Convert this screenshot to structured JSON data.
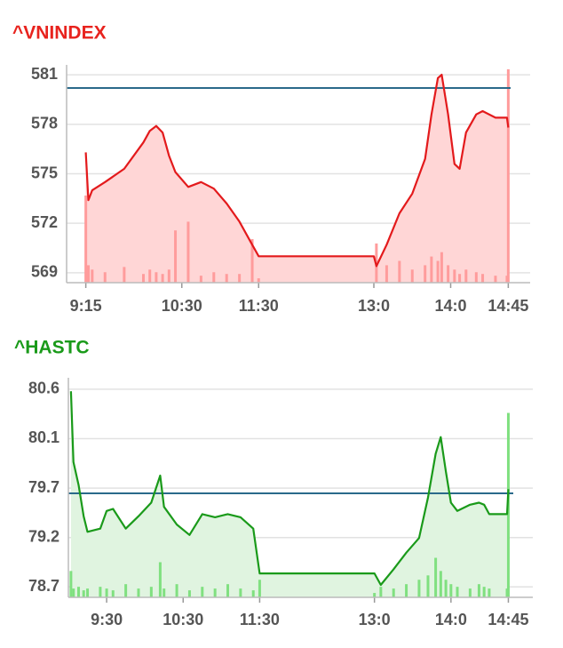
{
  "chart_data": [
    {
      "type": "line",
      "title": "^VNINDEX",
      "title_color": "#e8231e",
      "x": [
        "9:15",
        "9:17",
        "9:20",
        "9:30",
        "9:45",
        "10:00",
        "10:05",
        "10:10",
        "10:15",
        "10:20",
        "10:25",
        "10:35",
        "10:45",
        "10:55",
        "11:05",
        "11:15",
        "11:25",
        "11:30",
        "13:00",
        "13:02",
        "13:10",
        "13:20",
        "13:30",
        "13:40",
        "13:45",
        "13:50",
        "13:53",
        "13:58",
        "14:03",
        "14:07",
        "14:12",
        "14:20",
        "14:25",
        "14:35",
        "14:44",
        "14:45"
      ],
      "values": [
        576.3,
        573.4,
        574.0,
        574.5,
        575.3,
        576.9,
        577.6,
        577.9,
        577.5,
        576.1,
        575.1,
        574.2,
        574.5,
        574.1,
        573.2,
        572.1,
        570.7,
        570.0,
        570.0,
        569.4,
        570.7,
        572.6,
        573.8,
        575.9,
        578.6,
        580.8,
        581.0,
        578.6,
        575.6,
        575.3,
        577.5,
        578.6,
        578.8,
        578.4,
        578.4,
        577.8
      ],
      "color": "#e31a1c",
      "fill_color": "#ffd6d6",
      "volume": [
        100,
        20,
        15,
        12,
        18,
        10,
        15,
        12,
        10,
        15,
        60,
        70,
        8,
        12,
        10,
        10,
        50,
        5,
        0,
        45,
        20,
        25,
        15,
        20,
        30,
        25,
        35,
        20,
        15,
        10,
        15,
        12,
        10,
        8,
        8,
        245
      ],
      "volume_color": "#ff9c9c",
      "y2lim": [
        0,
        250
      ],
      "reference_line": 580.2,
      "reference_color": "#2a6a8a",
      "xlim": [
        "9:00",
        "15:00"
      ],
      "xticks": [
        "9:15",
        "10:30",
        "11:30",
        "13:0",
        "14:0",
        "14:45"
      ],
      "ylim": [
        568.4,
        581.6
      ],
      "yticks": [
        569,
        572,
        575,
        578,
        581
      ],
      "grid": true
    },
    {
      "type": "line",
      "title": "^HASTC",
      "title_color": "#1a9a1a",
      "x": [
        "9:02",
        "9:04",
        "9:08",
        "9:12",
        "9:15",
        "9:25",
        "9:30",
        "9:35",
        "9:45",
        "9:55",
        "10:05",
        "10:12",
        "10:15",
        "10:25",
        "10:35",
        "10:45",
        "10:55",
        "11:05",
        "11:15",
        "11:25",
        "11:30",
        "13:00",
        "13:05",
        "13:15",
        "13:25",
        "13:35",
        "13:42",
        "13:48",
        "13:52",
        "13:56",
        "14:00",
        "14:05",
        "14:15",
        "14:22",
        "14:26",
        "14:30",
        "14:44",
        "14:45"
      ],
      "values": [
        80.58,
        79.9,
        79.68,
        79.38,
        79.23,
        79.26,
        79.43,
        79.45,
        79.26,
        79.38,
        79.51,
        79.77,
        79.47,
        79.3,
        79.2,
        79.4,
        79.37,
        79.4,
        79.37,
        79.26,
        78.83,
        78.83,
        78.72,
        78.87,
        79.03,
        79.17,
        79.56,
        79.98,
        80.14,
        79.81,
        79.51,
        79.43,
        79.49,
        79.51,
        79.49,
        79.4,
        79.4,
        79.64
      ],
      "color": "#1a9a1a",
      "fill_color": "#e0f4e0",
      "volume": [
        30,
        10,
        12,
        8,
        10,
        12,
        10,
        8,
        15,
        10,
        12,
        40,
        10,
        15,
        8,
        12,
        10,
        15,
        10,
        8,
        20,
        5,
        12,
        10,
        15,
        20,
        25,
        45,
        30,
        20,
        15,
        12,
        10,
        15,
        12,
        10,
        10,
        210
      ],
      "volume_color": "#80e080",
      "y2lim": [
        0,
        250
      ],
      "reference_line": 79.6,
      "reference_color": "#2a6a8a",
      "xlim": [
        "9:00",
        "15:00"
      ],
      "xticks": [
        "9:30",
        "10:30",
        "11:30",
        "13:0",
        "14:0",
        "14:45"
      ],
      "ylim": [
        78.6,
        80.71
      ],
      "yticks": [
        {
          "value": 80.6,
          "label": "80.6"
        },
        {
          "value": 80.125,
          "label": "80.1"
        },
        {
          "value": 79.65,
          "label": "79.7"
        },
        {
          "value": 79.175,
          "label": "79.2"
        },
        {
          "value": 78.7,
          "label": "78.7"
        }
      ],
      "grid": true
    }
  ]
}
